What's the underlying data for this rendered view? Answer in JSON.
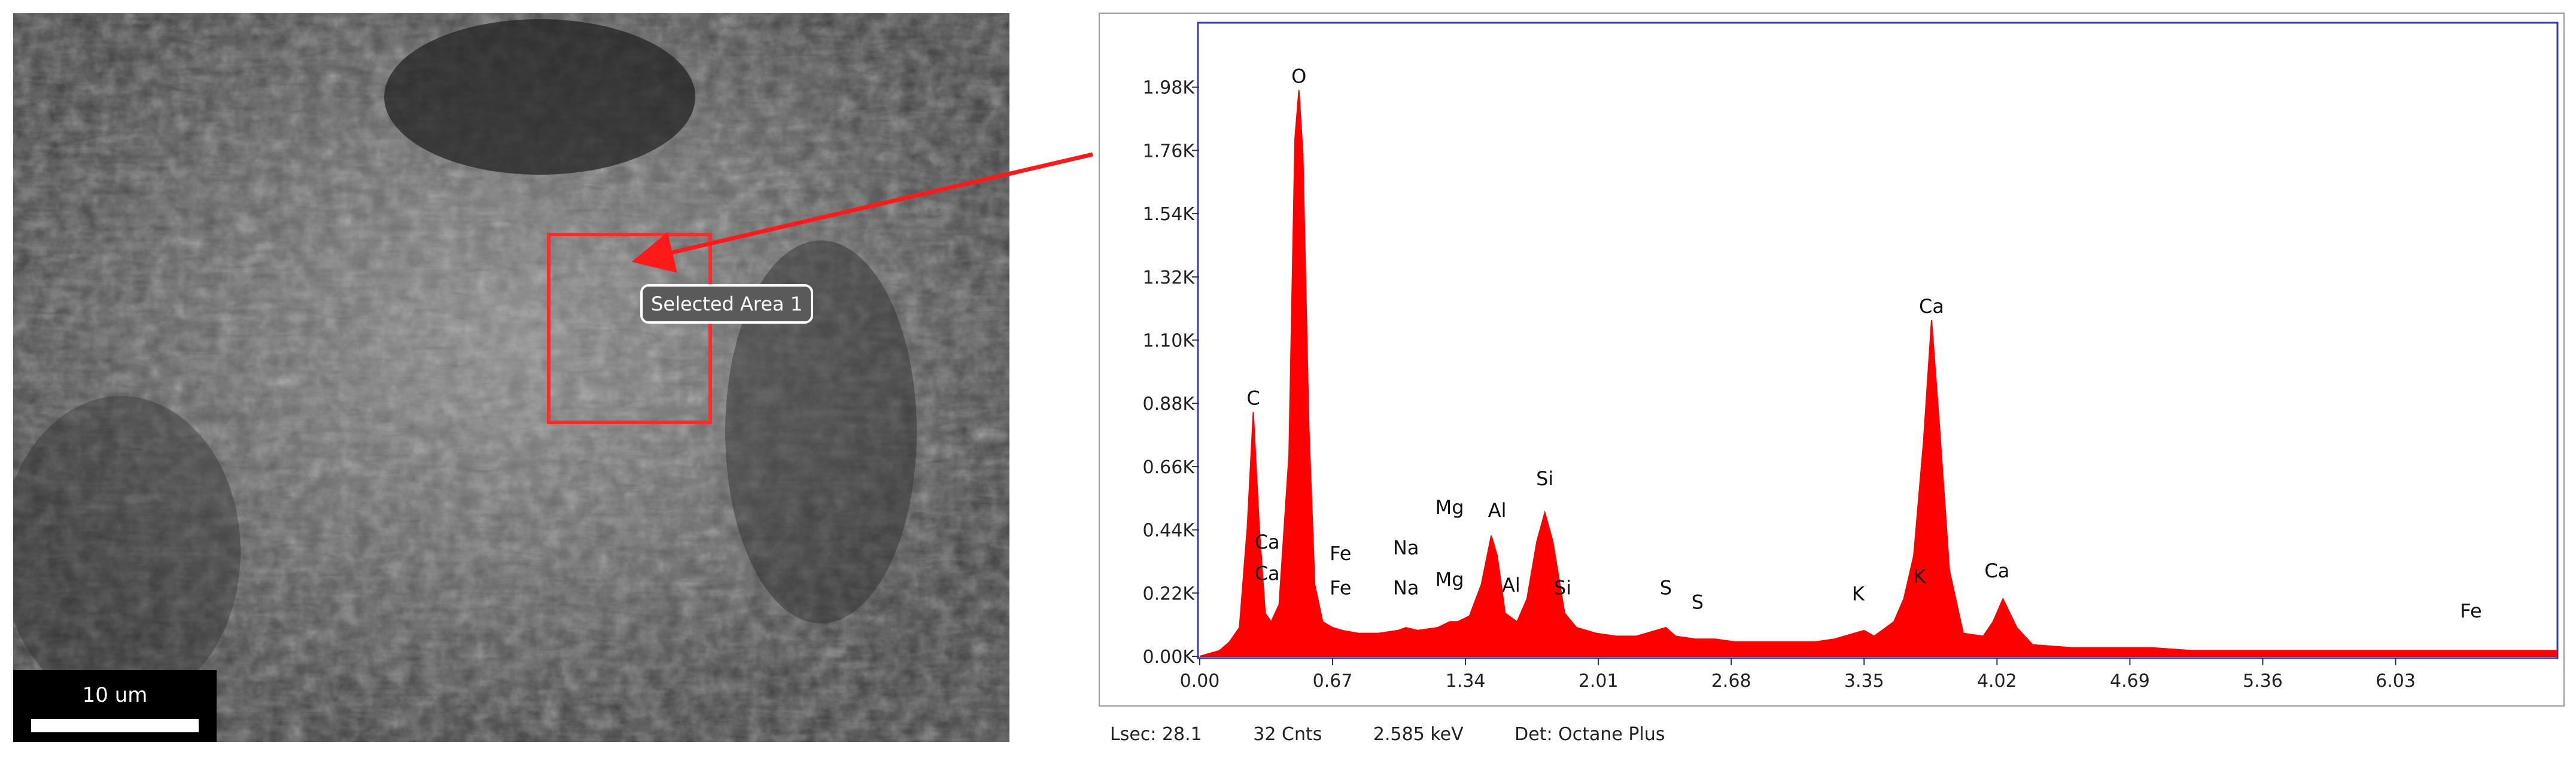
{
  "sem_image": {
    "scale_bar_label": "10 um",
    "selected_area_label": "Selected Area 1"
  },
  "spectrum_info": {
    "lsec": "Lsec: 28.1",
    "cnts": "32 Cnts",
    "energy": "2.585 keV",
    "detector": "Det: Octane Plus"
  },
  "colors": {
    "spectrum_fill": "#ff0000",
    "highlight": "#ff2a2a",
    "frame": "#3a3ab8"
  },
  "chart_data": {
    "type": "area",
    "title": "",
    "xlabel": "",
    "ylabel": "",
    "xlim": [
      0,
      6.84
    ],
    "ylim": [
      0,
      2.2
    ],
    "x_ticks": [
      0.0,
      0.67,
      1.34,
      2.01,
      2.68,
      3.35,
      4.02,
      4.69,
      5.36,
      6.03
    ],
    "x_tick_labels": [
      "0.00",
      "0.67",
      "1.34",
      "2.01",
      "2.68",
      "3.35",
      "4.02",
      "4.69",
      "5.36",
      "6.03"
    ],
    "y_ticks": [
      0.0,
      0.22,
      0.44,
      0.66,
      0.88,
      1.1,
      1.32,
      1.54,
      1.76,
      1.98
    ],
    "y_tick_labels": [
      "0.00K",
      "0.22K",
      "0.44K",
      "0.66K",
      "0.88K",
      "1.10K",
      "1.32K",
      "1.54K",
      "1.76K",
      "1.98K"
    ],
    "series": [
      {
        "x": [
          0.0,
          0.05,
          0.1,
          0.15,
          0.2,
          0.24,
          0.27,
          0.3,
          0.33,
          0.36,
          0.4,
          0.45,
          0.48,
          0.5,
          0.52,
          0.55,
          0.58,
          0.62,
          0.67,
          0.72,
          0.8,
          0.9,
          1.0,
          1.04,
          1.1,
          1.2,
          1.26,
          1.3,
          1.36,
          1.42,
          1.47,
          1.5,
          1.54,
          1.6,
          1.65,
          1.7,
          1.74,
          1.78,
          1.84,
          1.9,
          2.0,
          2.1,
          2.2,
          2.3,
          2.35,
          2.4,
          2.5,
          2.6,
          2.7,
          2.8,
          2.9,
          3.0,
          3.1,
          3.2,
          3.3,
          3.35,
          3.4,
          3.5,
          3.55,
          3.6,
          3.65,
          3.69,
          3.73,
          3.78,
          3.85,
          3.95,
          4.0,
          4.05,
          4.12,
          4.2,
          4.4,
          4.6,
          4.8,
          5.0,
          5.2,
          5.4,
          5.6,
          5.8,
          6.0,
          6.2,
          6.4,
          6.6,
          6.84
        ],
        "y": [
          0.0,
          0.01,
          0.02,
          0.05,
          0.1,
          0.45,
          0.85,
          0.45,
          0.15,
          0.12,
          0.18,
          0.7,
          1.8,
          1.97,
          1.75,
          0.8,
          0.25,
          0.12,
          0.1,
          0.09,
          0.08,
          0.08,
          0.09,
          0.1,
          0.09,
          0.1,
          0.12,
          0.12,
          0.14,
          0.25,
          0.42,
          0.35,
          0.15,
          0.12,
          0.2,
          0.4,
          0.5,
          0.4,
          0.15,
          0.1,
          0.08,
          0.07,
          0.07,
          0.09,
          0.1,
          0.07,
          0.06,
          0.06,
          0.05,
          0.05,
          0.05,
          0.05,
          0.05,
          0.06,
          0.08,
          0.09,
          0.07,
          0.12,
          0.2,
          0.35,
          0.75,
          1.17,
          0.8,
          0.3,
          0.08,
          0.07,
          0.12,
          0.2,
          0.1,
          0.04,
          0.03,
          0.03,
          0.03,
          0.02,
          0.02,
          0.02,
          0.02,
          0.02,
          0.02,
          0.02,
          0.02,
          0.02,
          0.02
        ]
      }
    ],
    "annotations": [
      {
        "text": "C",
        "x": 0.27,
        "y": 0.85
      },
      {
        "text": "O",
        "x": 0.5,
        "y": 1.97
      },
      {
        "text": "Ca",
        "x": 0.34,
        "y": 0.35
      },
      {
        "text": "Ca",
        "x": 0.34,
        "y": 0.24
      },
      {
        "text": "Fe",
        "x": 0.71,
        "y": 0.31
      },
      {
        "text": "Fe",
        "x": 0.71,
        "y": 0.19
      },
      {
        "text": "Na",
        "x": 1.04,
        "y": 0.33
      },
      {
        "text": "Na",
        "x": 1.04,
        "y": 0.19
      },
      {
        "text": "Mg",
        "x": 1.26,
        "y": 0.47
      },
      {
        "text": "Mg",
        "x": 1.26,
        "y": 0.22
      },
      {
        "text": "Al",
        "x": 1.5,
        "y": 0.46
      },
      {
        "text": "Al",
        "x": 1.57,
        "y": 0.2
      },
      {
        "text": "Si",
        "x": 1.74,
        "y": 0.57
      },
      {
        "text": "Si",
        "x": 1.83,
        "y": 0.19
      },
      {
        "text": "S",
        "x": 2.35,
        "y": 0.19
      },
      {
        "text": "S",
        "x": 2.51,
        "y": 0.14
      },
      {
        "text": "K",
        "x": 3.32,
        "y": 0.17
      },
      {
        "text": "K",
        "x": 3.63,
        "y": 0.23
      },
      {
        "text": "Ca",
        "x": 3.69,
        "y": 1.17
      },
      {
        "text": "Ca",
        "x": 4.02,
        "y": 0.25
      },
      {
        "text": "Fe",
        "x": 6.41,
        "y": 0.11
      }
    ],
    "grid": false,
    "legend": "none"
  }
}
